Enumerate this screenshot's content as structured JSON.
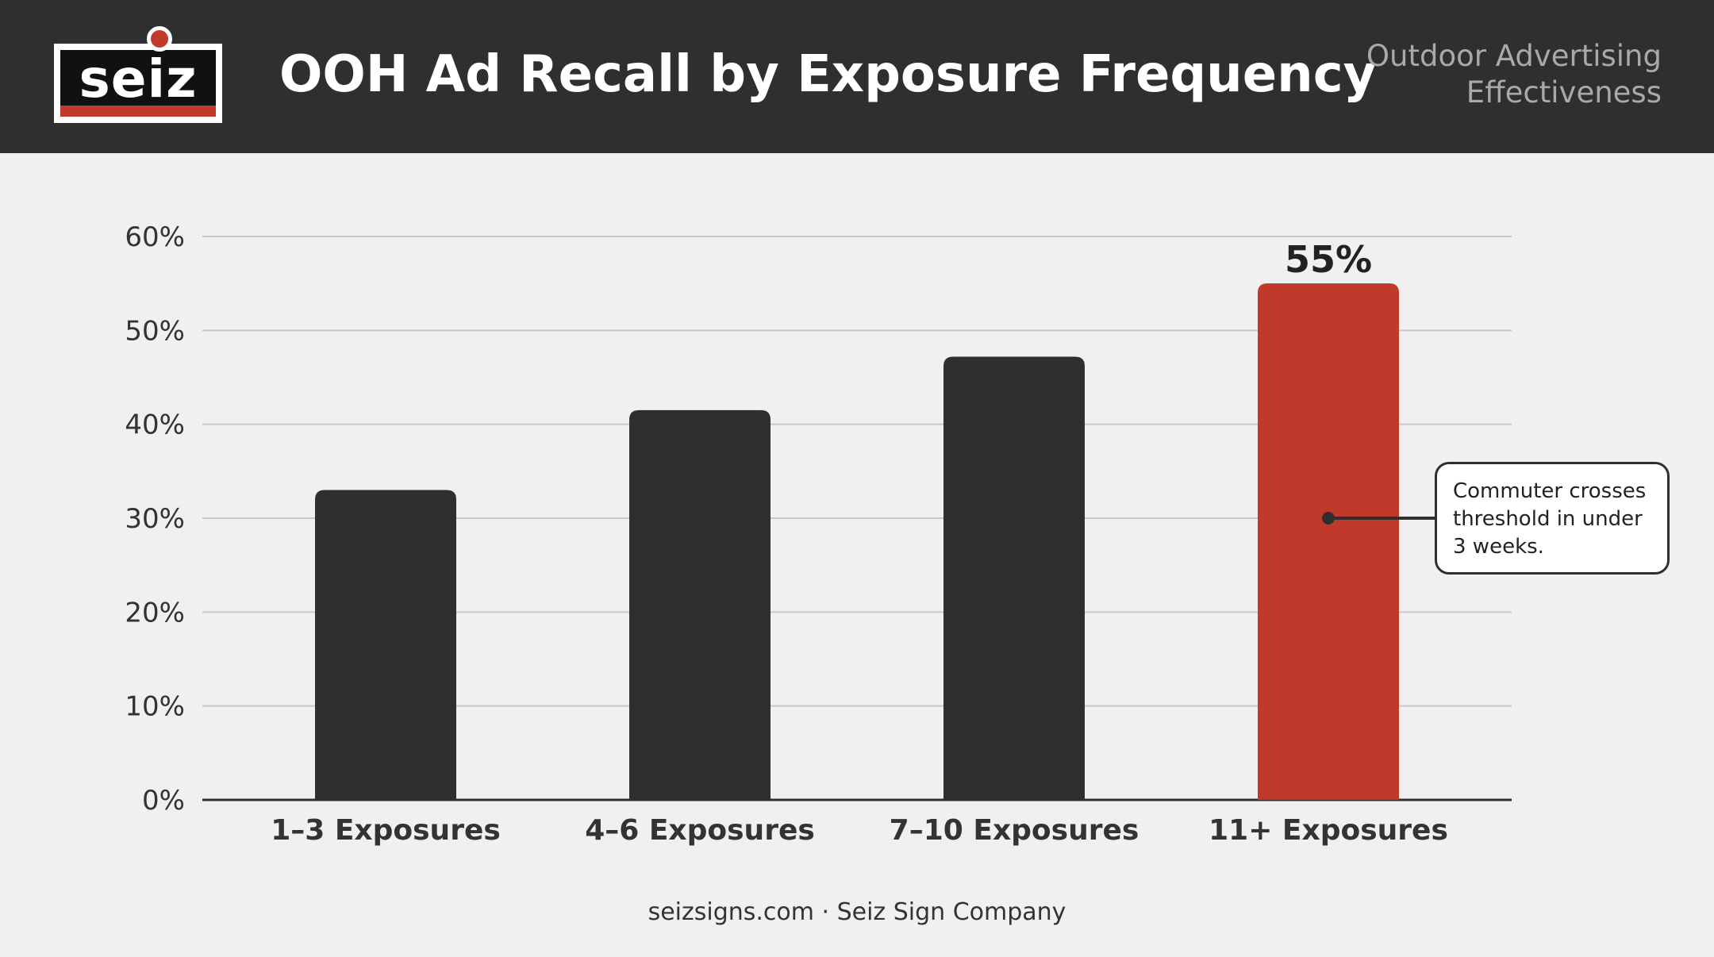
{
  "header": {
    "logo_text": "seiz",
    "title": "OOH Ad Recall by Exposure Frequency",
    "subtitle": "Outdoor Advertising Effectiveness"
  },
  "chart_data": {
    "type": "bar",
    "title": "OOH Ad Recall by Exposure Frequency",
    "xlabel": "",
    "ylabel": "",
    "categories": [
      "1–3 Exposures",
      "4–6 Exposures",
      "7–10 Exposures",
      "11+ Exposures"
    ],
    "values": [
      33,
      41.5,
      47.2,
      55
    ],
    "ylim": [
      0,
      60
    ],
    "yticks": [
      "0%",
      "10%",
      "20%",
      "30%",
      "40%",
      "50%",
      "60%"
    ],
    "highlight_index": 3,
    "highlight_label": "55%",
    "grid": true,
    "colors": {
      "bar": "#2f2f2f",
      "highlight": "#c0392b",
      "grid": "#c8c8c8",
      "axis": "#333333"
    },
    "annotation": {
      "text": "Commuter crosses threshold in under 3 weeks.",
      "target_category_index": 3,
      "target_value": 30
    }
  },
  "footer": {
    "text": "seizsigns.com · Seiz Sign Company"
  }
}
